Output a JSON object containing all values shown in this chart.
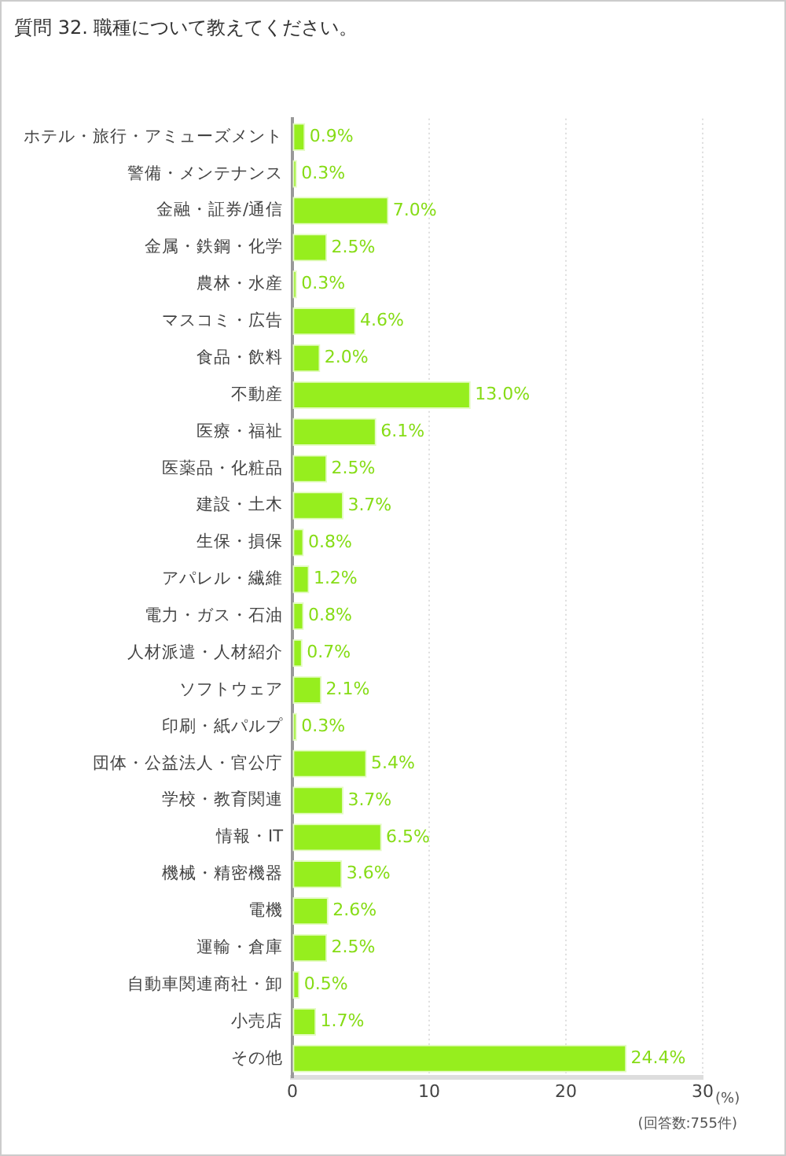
{
  "chart_data": {
    "type": "bar",
    "orientation": "horizontal",
    "title": "質問 32. 職種について教えてください。",
    "xlabel": "(%)",
    "categories": [
      "ホテル・旅行・アミューズメント",
      "警備・メンテナンス",
      "金融・証券/通信",
      "金属・鉄鋼・化学",
      "農林・水産",
      "マスコミ・広告",
      "食品・飲料",
      "不動産",
      "医療・福祉",
      "医薬品・化粧品",
      "建設・土木",
      "生保・損保",
      "アパレル・繊維",
      "電力・ガス・石油",
      "人材派遣・人材紹介",
      "ソフトウェア",
      "印刷・紙パルプ",
      "団体・公益法人・官公庁",
      "学校・教育関連",
      "情報・IT",
      "機械・精密機器",
      "電機",
      "運輸・倉庫",
      "自動車関連商社・卸",
      "小売店",
      "その他"
    ],
    "values": [
      0.9,
      0.3,
      7.0,
      2.5,
      0.3,
      4.6,
      2.0,
      13.0,
      6.1,
      2.5,
      3.7,
      0.8,
      1.2,
      0.8,
      0.7,
      2.1,
      0.3,
      5.4,
      3.7,
      6.5,
      3.6,
      2.6,
      2.5,
      0.5,
      1.7,
      24.4
    ],
    "value_labels": [
      "0.9%",
      "0.3%",
      "7.0%",
      "2.5%",
      "0.3%",
      "4.6%",
      "2.0%",
      "13.0%",
      "6.1%",
      "2.5%",
      "3.7%",
      "0.8%",
      "1.2%",
      "0.8%",
      "0.7%",
      "2.1%",
      "0.3%",
      "5.4%",
      "3.7%",
      "6.5%",
      "3.6%",
      "2.6%",
      "2.5%",
      "0.5%",
      "1.7%",
      "24.4%"
    ],
    "color": "#96ee1e",
    "xlim": [
      0,
      30
    ],
    "xticks": [
      0,
      10,
      20,
      30
    ],
    "grid": "x",
    "annotations": [
      "(回答数:755件)"
    ]
  }
}
